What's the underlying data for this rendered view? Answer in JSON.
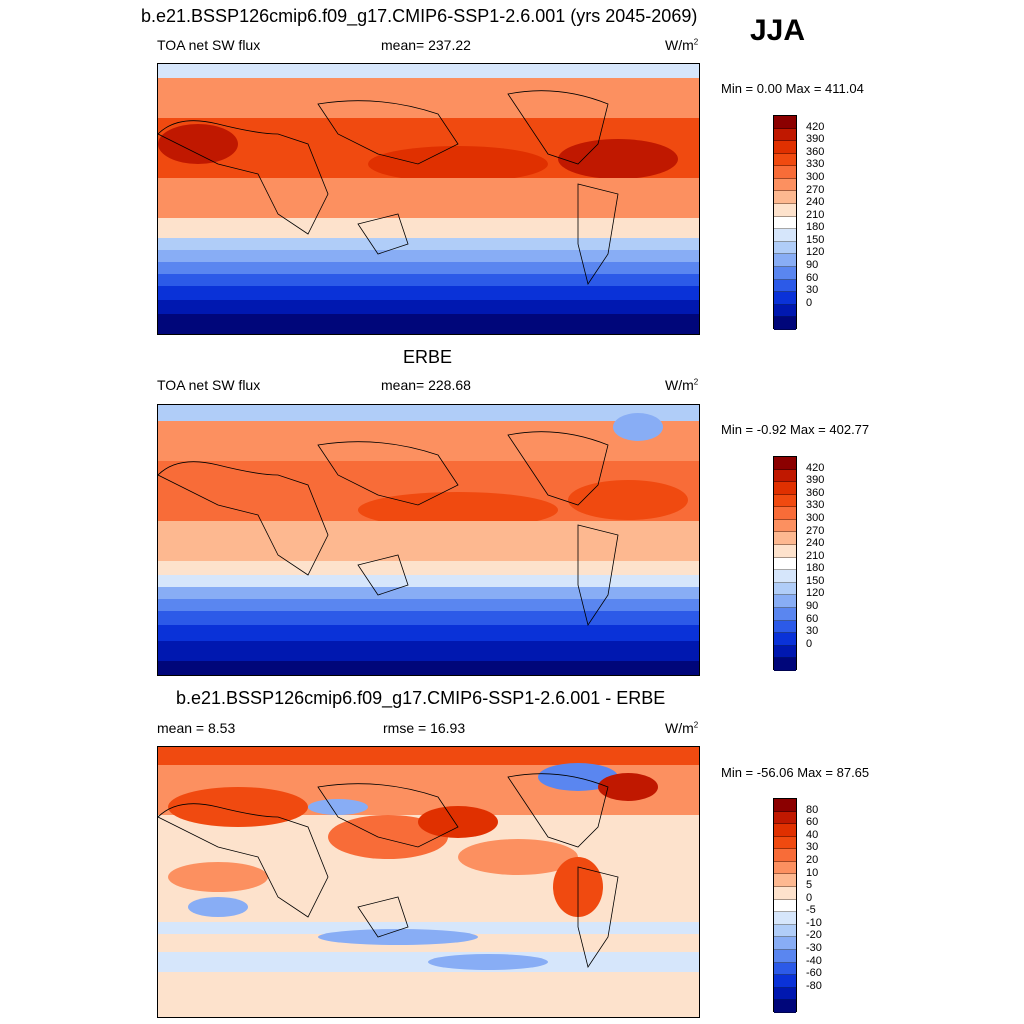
{
  "season": "JJA",
  "panels": [
    {
      "title": "b.e21.BSSP126cmip6.f09_g17.CMIP6-SSP1-2.6.001 (yrs 2045-2069)",
      "left": "TOA net SW flux",
      "center": "mean= 237.22",
      "units": "W/m",
      "units_sup": "2",
      "minmax": "Min =   0.00 Max = 411.04",
      "scale_labels": [
        "420",
        "390",
        "360",
        "330",
        "300",
        "270",
        "240",
        "210",
        "180",
        "150",
        "120",
        "90",
        "60",
        "30",
        "0"
      ],
      "colors": [
        "#8b0000",
        "#c01800",
        "#e03000",
        "#f04a10",
        "#f86c38",
        "#fc9060",
        "#fdb890",
        "#fde2cc",
        "#ffffff",
        "#d6e6fb",
        "#b0cdf8",
        "#88adf5",
        "#5a86f0",
        "#2c5ae8",
        "#0a32d8",
        "#0018b0",
        "#00067a"
      ]
    },
    {
      "title": "ERBE",
      "left": "TOA net SW flux",
      "center": "mean= 228.68",
      "units": "W/m",
      "units_sup": "2",
      "minmax": "Min =  -0.92 Max = 402.77",
      "scale_labels": [
        "420",
        "390",
        "360",
        "330",
        "300",
        "270",
        "240",
        "210",
        "180",
        "150",
        "120",
        "90",
        "60",
        "30",
        "0"
      ],
      "colors": [
        "#8b0000",
        "#c01800",
        "#e03000",
        "#f04a10",
        "#f86c38",
        "#fc9060",
        "#fdb890",
        "#fde2cc",
        "#ffffff",
        "#d6e6fb",
        "#b0cdf8",
        "#88adf5",
        "#5a86f0",
        "#2c5ae8",
        "#0a32d8",
        "#0018b0",
        "#00067a"
      ]
    },
    {
      "title": "b.e21.BSSP126cmip6.f09_g17.CMIP6-SSP1-2.6.001 - ERBE",
      "left": "mean =   8.53",
      "center": "rmse =  16.93",
      "units": "W/m",
      "units_sup": "2",
      "minmax": "Min = -56.06 Max =  87.65",
      "scale_labels": [
        "80",
        "60",
        "40",
        "30",
        "20",
        "10",
        "5",
        "0",
        "-5",
        "-10",
        "-20",
        "-30",
        "-40",
        "-60",
        "-80"
      ],
      "colors": [
        "#8b0000",
        "#c01800",
        "#e03000",
        "#f04a10",
        "#f86c38",
        "#fc9060",
        "#fdb890",
        "#fde2cc",
        "#ffffff",
        "#d6e6fb",
        "#b0cdf8",
        "#88adf5",
        "#5a86f0",
        "#2c5ae8",
        "#0a32d8",
        "#0018b0",
        "#00067a"
      ]
    }
  ]
}
